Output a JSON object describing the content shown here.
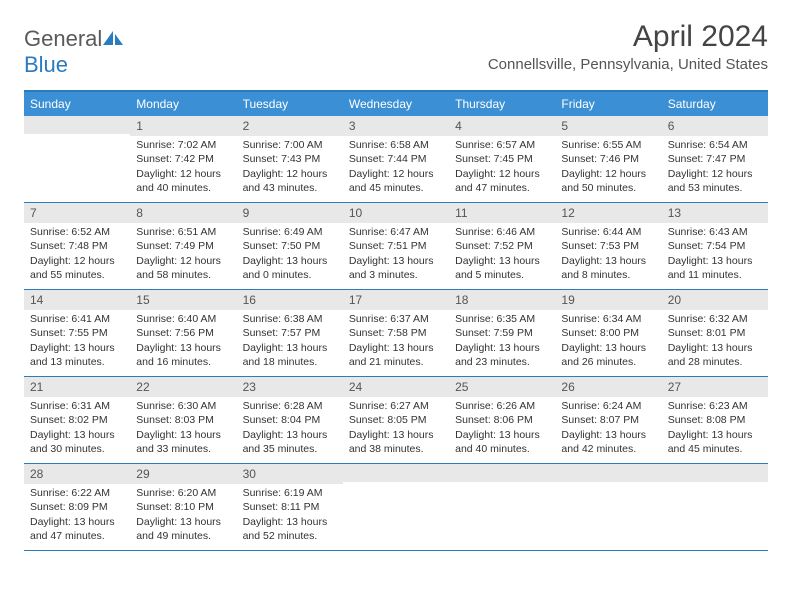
{
  "brand": {
    "text_general": "General",
    "text_blue": "Blue",
    "logo_color": "#2b7bbf"
  },
  "title": "April 2024",
  "location": "Connellsville, Pennsylvania, United States",
  "header_bg": "#3b8fd4",
  "border_color": "#2b7bbf",
  "daynum_bg": "#e8e8e8",
  "weekdays": [
    "Sunday",
    "Monday",
    "Tuesday",
    "Wednesday",
    "Thursday",
    "Friday",
    "Saturday"
  ],
  "weeks": [
    [
      {
        "n": "",
        "sunrise": "",
        "sunset": "",
        "daylight": ""
      },
      {
        "n": "1",
        "sunrise": "Sunrise: 7:02 AM",
        "sunset": "Sunset: 7:42 PM",
        "daylight": "Daylight: 12 hours and 40 minutes."
      },
      {
        "n": "2",
        "sunrise": "Sunrise: 7:00 AM",
        "sunset": "Sunset: 7:43 PM",
        "daylight": "Daylight: 12 hours and 43 minutes."
      },
      {
        "n": "3",
        "sunrise": "Sunrise: 6:58 AM",
        "sunset": "Sunset: 7:44 PM",
        "daylight": "Daylight: 12 hours and 45 minutes."
      },
      {
        "n": "4",
        "sunrise": "Sunrise: 6:57 AM",
        "sunset": "Sunset: 7:45 PM",
        "daylight": "Daylight: 12 hours and 47 minutes."
      },
      {
        "n": "5",
        "sunrise": "Sunrise: 6:55 AM",
        "sunset": "Sunset: 7:46 PM",
        "daylight": "Daylight: 12 hours and 50 minutes."
      },
      {
        "n": "6",
        "sunrise": "Sunrise: 6:54 AM",
        "sunset": "Sunset: 7:47 PM",
        "daylight": "Daylight: 12 hours and 53 minutes."
      }
    ],
    [
      {
        "n": "7",
        "sunrise": "Sunrise: 6:52 AM",
        "sunset": "Sunset: 7:48 PM",
        "daylight": "Daylight: 12 hours and 55 minutes."
      },
      {
        "n": "8",
        "sunrise": "Sunrise: 6:51 AM",
        "sunset": "Sunset: 7:49 PM",
        "daylight": "Daylight: 12 hours and 58 minutes."
      },
      {
        "n": "9",
        "sunrise": "Sunrise: 6:49 AM",
        "sunset": "Sunset: 7:50 PM",
        "daylight": "Daylight: 13 hours and 0 minutes."
      },
      {
        "n": "10",
        "sunrise": "Sunrise: 6:47 AM",
        "sunset": "Sunset: 7:51 PM",
        "daylight": "Daylight: 13 hours and 3 minutes."
      },
      {
        "n": "11",
        "sunrise": "Sunrise: 6:46 AM",
        "sunset": "Sunset: 7:52 PM",
        "daylight": "Daylight: 13 hours and 5 minutes."
      },
      {
        "n": "12",
        "sunrise": "Sunrise: 6:44 AM",
        "sunset": "Sunset: 7:53 PM",
        "daylight": "Daylight: 13 hours and 8 minutes."
      },
      {
        "n": "13",
        "sunrise": "Sunrise: 6:43 AM",
        "sunset": "Sunset: 7:54 PM",
        "daylight": "Daylight: 13 hours and 11 minutes."
      }
    ],
    [
      {
        "n": "14",
        "sunrise": "Sunrise: 6:41 AM",
        "sunset": "Sunset: 7:55 PM",
        "daylight": "Daylight: 13 hours and 13 minutes."
      },
      {
        "n": "15",
        "sunrise": "Sunrise: 6:40 AM",
        "sunset": "Sunset: 7:56 PM",
        "daylight": "Daylight: 13 hours and 16 minutes."
      },
      {
        "n": "16",
        "sunrise": "Sunrise: 6:38 AM",
        "sunset": "Sunset: 7:57 PM",
        "daylight": "Daylight: 13 hours and 18 minutes."
      },
      {
        "n": "17",
        "sunrise": "Sunrise: 6:37 AM",
        "sunset": "Sunset: 7:58 PM",
        "daylight": "Daylight: 13 hours and 21 minutes."
      },
      {
        "n": "18",
        "sunrise": "Sunrise: 6:35 AM",
        "sunset": "Sunset: 7:59 PM",
        "daylight": "Daylight: 13 hours and 23 minutes."
      },
      {
        "n": "19",
        "sunrise": "Sunrise: 6:34 AM",
        "sunset": "Sunset: 8:00 PM",
        "daylight": "Daylight: 13 hours and 26 minutes."
      },
      {
        "n": "20",
        "sunrise": "Sunrise: 6:32 AM",
        "sunset": "Sunset: 8:01 PM",
        "daylight": "Daylight: 13 hours and 28 minutes."
      }
    ],
    [
      {
        "n": "21",
        "sunrise": "Sunrise: 6:31 AM",
        "sunset": "Sunset: 8:02 PM",
        "daylight": "Daylight: 13 hours and 30 minutes."
      },
      {
        "n": "22",
        "sunrise": "Sunrise: 6:30 AM",
        "sunset": "Sunset: 8:03 PM",
        "daylight": "Daylight: 13 hours and 33 minutes."
      },
      {
        "n": "23",
        "sunrise": "Sunrise: 6:28 AM",
        "sunset": "Sunset: 8:04 PM",
        "daylight": "Daylight: 13 hours and 35 minutes."
      },
      {
        "n": "24",
        "sunrise": "Sunrise: 6:27 AM",
        "sunset": "Sunset: 8:05 PM",
        "daylight": "Daylight: 13 hours and 38 minutes."
      },
      {
        "n": "25",
        "sunrise": "Sunrise: 6:26 AM",
        "sunset": "Sunset: 8:06 PM",
        "daylight": "Daylight: 13 hours and 40 minutes."
      },
      {
        "n": "26",
        "sunrise": "Sunrise: 6:24 AM",
        "sunset": "Sunset: 8:07 PM",
        "daylight": "Daylight: 13 hours and 42 minutes."
      },
      {
        "n": "27",
        "sunrise": "Sunrise: 6:23 AM",
        "sunset": "Sunset: 8:08 PM",
        "daylight": "Daylight: 13 hours and 45 minutes."
      }
    ],
    [
      {
        "n": "28",
        "sunrise": "Sunrise: 6:22 AM",
        "sunset": "Sunset: 8:09 PM",
        "daylight": "Daylight: 13 hours and 47 minutes."
      },
      {
        "n": "29",
        "sunrise": "Sunrise: 6:20 AM",
        "sunset": "Sunset: 8:10 PM",
        "daylight": "Daylight: 13 hours and 49 minutes."
      },
      {
        "n": "30",
        "sunrise": "Sunrise: 6:19 AM",
        "sunset": "Sunset: 8:11 PM",
        "daylight": "Daylight: 13 hours and 52 minutes."
      },
      {
        "n": "",
        "sunrise": "",
        "sunset": "",
        "daylight": ""
      },
      {
        "n": "",
        "sunrise": "",
        "sunset": "",
        "daylight": ""
      },
      {
        "n": "",
        "sunrise": "",
        "sunset": "",
        "daylight": ""
      },
      {
        "n": "",
        "sunrise": "",
        "sunset": "",
        "daylight": ""
      }
    ]
  ]
}
